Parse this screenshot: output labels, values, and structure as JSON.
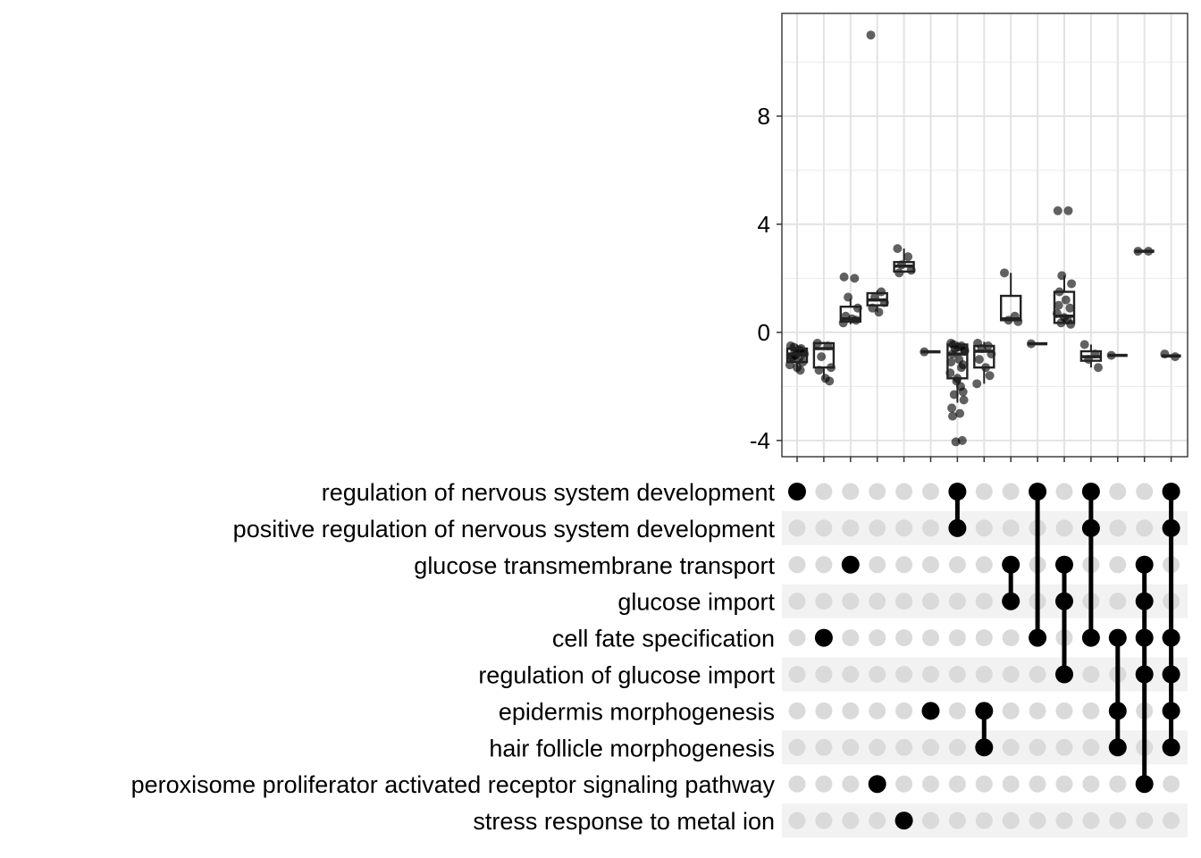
{
  "chart_data": {
    "type": "upset-boxplot",
    "y_ticks": [
      -4,
      0,
      4,
      8
    ],
    "ylim": [
      -4.6,
      11.8
    ],
    "sets": [
      "regulation of nervous system development",
      "positive regulation of nervous system development",
      "glucose transmembrane transport",
      "glucose import",
      "cell fate specification",
      "regulation of glucose import",
      "epidermis morphogenesis",
      "hair follicle morphogenesis",
      "peroxisome proliferator activated receptor signaling pathway",
      "stress response to metal ion"
    ],
    "intersections": [
      {
        "sets": [
          0
        ],
        "box": {
          "q1": -1.1,
          "median": -0.8,
          "q3": -0.6,
          "low": -1.4,
          "high": -0.45
        },
        "points": [
          -0.5,
          -0.6,
          -0.7,
          -0.8,
          -0.9,
          -1.0,
          -1.1,
          -1.2,
          -1.3,
          -1.4,
          -0.55,
          -0.75,
          -0.95,
          -0.65,
          -0.85
        ]
      },
      {
        "sets": [
          4
        ],
        "box": {
          "q1": -1.3,
          "median": -0.6,
          "q3": -0.4,
          "low": -1.75,
          "high": -0.35
        },
        "points": [
          -0.4,
          -0.5,
          -0.9,
          -1.3,
          -1.4,
          -1.7,
          -1.8
        ]
      },
      {
        "sets": [
          2
        ],
        "box": {
          "q1": 0.4,
          "median": 0.5,
          "q3": 0.95,
          "low": 0.3,
          "high": 1.25
        },
        "points": [
          2.05,
          2.0,
          1.3,
          0.9,
          0.6,
          0.5,
          0.45,
          0.35
        ]
      },
      {
        "sets": [
          8
        ],
        "box": {
          "q1": 1.0,
          "median": 1.2,
          "q3": 1.45,
          "low": 0.75,
          "high": 1.55
        },
        "points": [
          11.0,
          1.5,
          1.3,
          1.1,
          0.9,
          0.75
        ]
      },
      {
        "sets": [
          9
        ],
        "box": {
          "q1": 2.25,
          "median": 2.45,
          "q3": 2.6,
          "low": 2.2,
          "high": 3.1
        },
        "points": [
          3.1,
          2.8,
          2.5,
          2.3,
          2.2
        ]
      },
      {
        "sets": [
          6
        ],
        "box": {
          "q1": -0.72,
          "median": -0.72,
          "q3": -0.72,
          "low": -0.72,
          "high": -0.72
        },
        "points": [
          -0.72
        ]
      },
      {
        "sets": [
          0,
          1
        ],
        "box": {
          "q1": -1.7,
          "median": -0.8,
          "q3": -0.45,
          "low": -2.6,
          "high": -0.35
        },
        "points": [
          -0.4,
          -0.5,
          -0.6,
          -0.7,
          -0.8,
          -1.0,
          -1.2,
          -1.5,
          -1.7,
          -2.0,
          -2.3,
          -2.5,
          -2.8,
          -3.0,
          -4.05,
          -4.0,
          -0.45,
          -0.55,
          -0.65,
          -1.1,
          -1.3,
          -1.8,
          -2.2,
          -3.1
        ]
      },
      {
        "sets": [
          6,
          7
        ],
        "box": {
          "q1": -1.3,
          "median": -0.7,
          "q3": -0.5,
          "low": -1.9,
          "high": -0.35
        },
        "points": [
          -0.4,
          -0.5,
          -0.6,
          -0.8,
          -1.0,
          -1.3,
          -1.6,
          -1.9
        ]
      },
      {
        "sets": [
          2,
          3
        ],
        "box": {
          "q1": 0.45,
          "median": 0.5,
          "q3": 1.35,
          "low": 0.4,
          "high": 2.2
        },
        "points": [
          2.2,
          0.6,
          0.45,
          0.4
        ]
      },
      {
        "sets": [
          0,
          4
        ],
        "box": {
          "q1": -0.42,
          "median": -0.42,
          "q3": -0.42,
          "low": -0.42,
          "high": -0.42
        },
        "points": [
          -0.42
        ]
      },
      {
        "sets": [
          2,
          3,
          5
        ],
        "box": {
          "q1": 0.35,
          "median": 0.6,
          "q3": 1.5,
          "low": 0.3,
          "high": 2.1
        },
        "points": [
          4.5,
          4.5,
          2.1,
          1.8,
          1.5,
          1.2,
          0.9,
          0.7,
          0.55,
          0.45,
          0.35,
          0.3,
          1.0
        ]
      },
      {
        "sets": [
          0,
          1,
          4
        ],
        "box": {
          "q1": -1.05,
          "median": -0.9,
          "q3": -0.7,
          "low": -1.3,
          "high": -0.45
        },
        "points": [
          -0.45,
          -0.8,
          -1.0,
          -1.3
        ]
      },
      {
        "sets": [
          4,
          6,
          7
        ],
        "box": {
          "q1": -0.85,
          "median": -0.85,
          "q3": -0.85,
          "low": -0.85,
          "high": -0.85
        },
        "points": [
          -0.85
        ]
      },
      {
        "sets": [
          2,
          3,
          4,
          5,
          8
        ],
        "box": {
          "q1": 3.0,
          "median": 3.0,
          "q3": 3.0,
          "low": 3.0,
          "high": 3.0
        },
        "points": [
          3.0,
          3.0
        ]
      },
      {
        "sets": [
          0,
          1,
          4,
          5,
          6,
          7
        ],
        "box": {
          "q1": -0.87,
          "median": -0.87,
          "q3": -0.87,
          "low": -0.87,
          "high": -0.87
        },
        "points": [
          -0.8,
          -0.9
        ]
      }
    ]
  }
}
